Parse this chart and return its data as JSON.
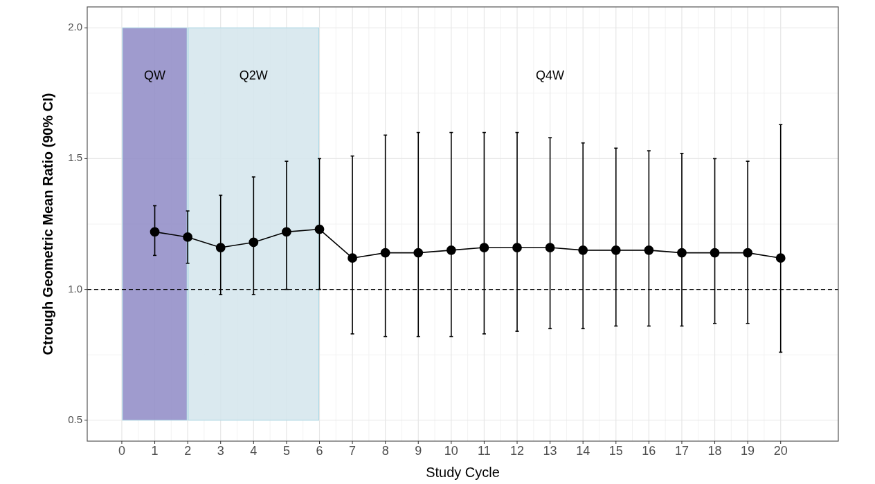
{
  "chart_data": {
    "type": "line",
    "xlabel": "Study Cycle",
    "ylabel": "Ctrough Geometric Mean Ratio (90% CI)",
    "x": [
      1,
      2,
      3,
      4,
      5,
      6,
      7,
      8,
      9,
      10,
      11,
      12,
      13,
      14,
      15,
      16,
      17,
      18,
      19,
      20
    ],
    "series": [
      {
        "color": "#000000",
        "values": [
          1.22,
          1.2,
          1.16,
          1.18,
          1.22,
          1.23,
          1.12,
          1.14,
          1.14,
          1.15,
          1.16,
          1.16,
          1.16,
          1.15,
          1.15,
          1.15,
          1.14,
          1.14,
          1.14,
          1.12
        ],
        "errors": [
          [
            1.13,
            1.32
          ],
          [
            1.1,
            1.3
          ],
          [
            0.98,
            1.36
          ],
          [
            0.98,
            1.43
          ],
          [
            1.0,
            1.49
          ],
          [
            1.0,
            1.5
          ],
          [
            0.83,
            1.51
          ],
          [
            0.82,
            1.59
          ],
          [
            0.82,
            1.6
          ],
          [
            0.82,
            1.6
          ],
          [
            0.83,
            1.6
          ],
          [
            0.84,
            1.6
          ],
          [
            0.85,
            1.58
          ],
          [
            0.85,
            1.56
          ],
          [
            0.86,
            1.54
          ],
          [
            0.86,
            1.53
          ],
          [
            0.86,
            1.52
          ],
          [
            0.87,
            1.5
          ],
          [
            0.87,
            1.49
          ],
          [
            0.76,
            1.63
          ]
        ]
      }
    ],
    "marker": "circle",
    "line_style": "solid",
    "grid": true,
    "xlim": [
      -1.05,
      21.75
    ],
    "xticks": [
      0,
      1,
      2,
      3,
      4,
      5,
      6,
      7,
      8,
      9,
      10,
      11,
      12,
      13,
      14,
      15,
      16,
      17,
      18,
      19,
      20
    ],
    "ylim": [
      0.42,
      2.08
    ],
    "yticks": [
      {
        "value": 0.5,
        "label": "0.5"
      },
      {
        "value": 1,
        "label": "1.0"
      },
      {
        "value": 1.5,
        "label": "1.5"
      },
      {
        "value": 2,
        "label": "2.0"
      }
    ],
    "bands": [
      {
        "axis": "x",
        "from": 0,
        "to": 2,
        "label": "QW",
        "color": "#8e8ac6"
      },
      {
        "axis": "x",
        "from": 2,
        "to": 6,
        "label": "Q2W",
        "color": "#d3e5ec"
      }
    ],
    "ref_lines": [
      {
        "axis": "y",
        "value": 1,
        "line_style": "dashed",
        "color": "#000000"
      }
    ],
    "annotations": [
      "Q4W"
    ]
  }
}
